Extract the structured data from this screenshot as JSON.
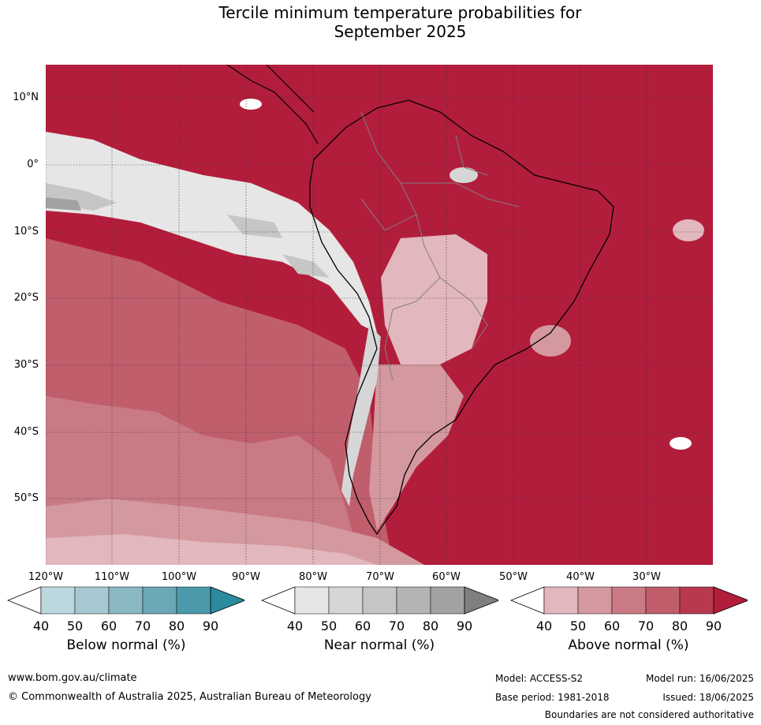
{
  "title_line1": "Tercile minimum temperature probabilities for",
  "title_line2": "September 2025",
  "lat_labels": [
    "10°N",
    "0°",
    "10°S",
    "20°S",
    "30°S",
    "40°S",
    "50°S"
  ],
  "lon_labels": [
    "120°W",
    "110°W",
    "100°W",
    "90°W",
    "80°W",
    "70°W",
    "60°W",
    "50°W",
    "40°W",
    "30°W"
  ],
  "colorbars": [
    {
      "title": "Below normal (%)",
      "ticks": [
        "40",
        "50",
        "60",
        "70",
        "80",
        "90"
      ],
      "colors": [
        "#ffffff",
        "#bdd7de",
        "#a6c9d1",
        "#8ab8c3",
        "#6ba8b5",
        "#4b9aab",
        "#2a8a9e"
      ]
    },
    {
      "title": "Near normal (%)",
      "ticks": [
        "40",
        "50",
        "60",
        "70",
        "80",
        "90"
      ],
      "colors": [
        "#ffffff",
        "#e6e6e6",
        "#d6d6d6",
        "#c6c6c6",
        "#b4b4b4",
        "#a2a2a2",
        "#7f7f7f"
      ]
    },
    {
      "title": "Above normal (%)",
      "ticks": [
        "40",
        "50",
        "60",
        "70",
        "80",
        "90"
      ],
      "colors": [
        "#ffffff",
        "#e2b7bd",
        "#d4989f",
        "#c97a85",
        "#c05e6c",
        "#b8394f",
        "#b31d3c"
      ]
    }
  ],
  "footer": {
    "website": "www.bom.gov.au/climate",
    "copyright": "© Commonwealth of Australia 2025, Australian Bureau of Meteorology",
    "model": "Model: ACCESS-S2",
    "base_period": "Base period: 1981-2018",
    "model_run": "Model run: 16/06/2025",
    "issued": "Issued: 18/06/2025",
    "disclaimer": "Boundaries are not considered authoritative"
  }
}
